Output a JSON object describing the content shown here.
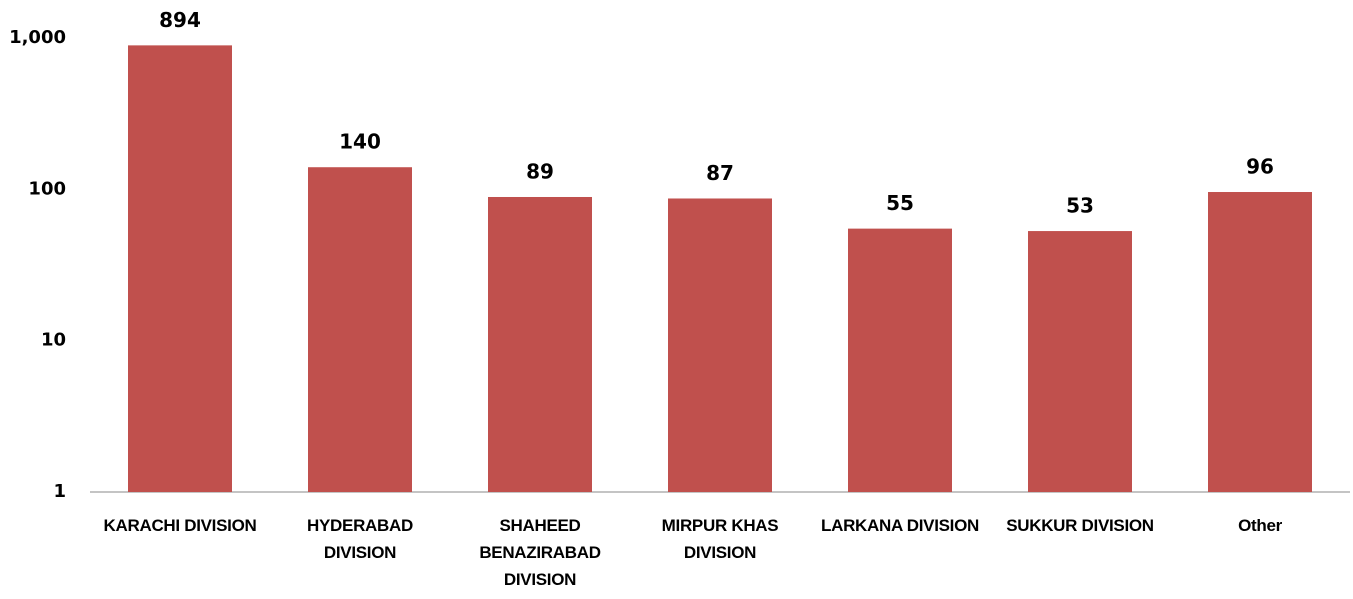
{
  "chart_data": {
    "type": "bar",
    "log_scale": true,
    "categories": [
      "KARACHI DIVISION",
      "HYDERABAD DIVISION",
      "SHAHEED BENAZIRABAD DIVISION",
      "MIRPUR KHAS DIVISION",
      "LARKANA DIVISION",
      "SUKKUR DIVISION",
      "Other"
    ],
    "values": [
      894,
      140,
      89,
      87,
      55,
      53,
      96
    ],
    "color": "#c0504d",
    "ylim": [
      1,
      1000
    ],
    "yticks": [
      1,
      10,
      100,
      {
        "value": 1000,
        "label": "1,000"
      }
    ],
    "grid": false
  }
}
